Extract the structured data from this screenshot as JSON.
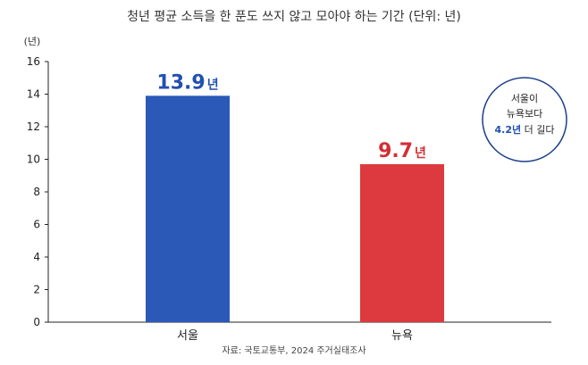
{
  "chart_data": {
    "type": "bar",
    "title": "청년 평균 소득을 한 푼도 쓰지 않고 모아야 하는 기간 (단위: 년)",
    "unit_label": "(년)",
    "categories": [
      "서울",
      "뉴욕"
    ],
    "values": [
      13.9,
      9.7
    ],
    "value_unit": "년",
    "value_labels": [
      "13.9",
      "9.7"
    ],
    "bar_colors": [
      "#2a59b8",
      "#dc3a3f"
    ],
    "label_colors": [
      "#2150b0",
      "#d32f34"
    ],
    "ylim": [
      0,
      16
    ],
    "y_ticks": [
      0,
      2,
      4,
      6,
      8,
      10,
      12,
      14,
      16
    ],
    "grid": false,
    "annotation": {
      "line1": "서울이",
      "line2": "뉴욕보다",
      "highlight": "4.2년",
      "line3_rest": " 더 길다",
      "border_color": "#1c3f8c",
      "highlight_color": "#2150b0"
    },
    "source": "자료: 국토교통부, 2024 주거실태조사"
  }
}
